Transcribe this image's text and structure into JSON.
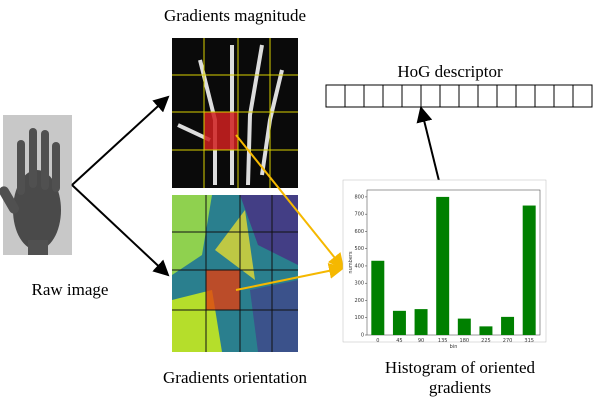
{
  "labels": {
    "gradients_magnitude": "Gradients magnitude",
    "hog_descriptor": "HoG descriptor",
    "raw_image": "Raw image",
    "gradients_orientation": "Gradients orientation",
    "histogram": "Histogram of oriented gradients"
  },
  "histogram": {
    "type": "bar",
    "x_label": "bin",
    "y_label": "numbers",
    "color": "#008000",
    "categories": [
      "0",
      "45",
      "90",
      "135",
      "180",
      "225",
      "270",
      "315"
    ],
    "values": [
      430,
      140,
      150,
      800,
      95,
      50,
      105,
      750
    ],
    "ylim": [
      0,
      840
    ],
    "yticks": [
      0,
      100,
      200,
      300,
      400,
      500,
      600,
      700,
      800
    ]
  }
}
